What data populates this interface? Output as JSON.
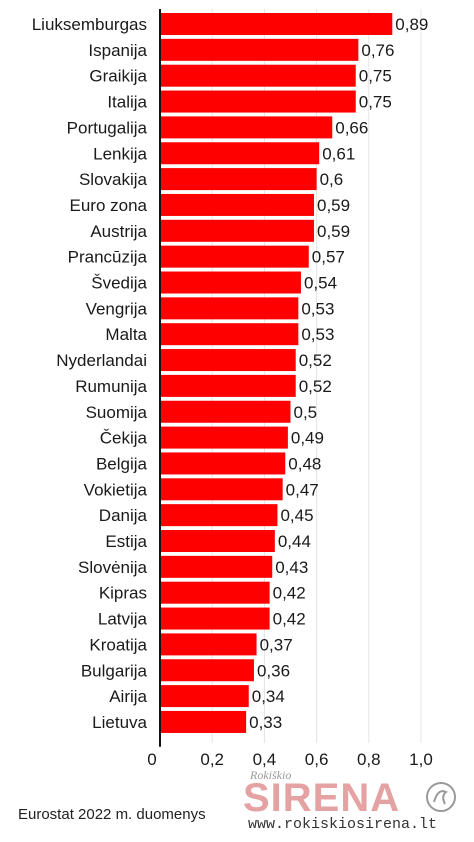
{
  "chart_data": {
    "type": "bar",
    "orientation": "horizontal",
    "categories": [
      "Liuksemburgas",
      "Ispanija",
      "Graikija",
      "Italija",
      "Portugalija",
      "Lenkija",
      "Slovakija",
      "Euro zona",
      "Austrija",
      "Prancūzija",
      "Švedija",
      "Vengrija",
      "Malta",
      "Nyderlandai",
      "Rumunija",
      "Suomija",
      "Čekija",
      "Belgija",
      "Vokietija",
      "Danija",
      "Estija",
      "Slovėnija",
      "Kipras",
      "Latvija",
      "Kroatija",
      "Bulgarija",
      "Airija",
      "Lietuva"
    ],
    "values": [
      0.89,
      0.76,
      0.75,
      0.75,
      0.66,
      0.61,
      0.6,
      0.59,
      0.59,
      0.57,
      0.54,
      0.53,
      0.53,
      0.52,
      0.52,
      0.5,
      0.49,
      0.48,
      0.47,
      0.45,
      0.44,
      0.43,
      0.42,
      0.42,
      0.37,
      0.36,
      0.34,
      0.33
    ],
    "value_labels": [
      "0,89",
      "0,76",
      "0,75",
      "0,75",
      "0,66",
      "0,61",
      "0,6",
      "0,59",
      "0,59",
      "0,57",
      "0,54",
      "0,53",
      "0,53",
      "0,52",
      "0,52",
      "0,5",
      "0,49",
      "0,48",
      "0,47",
      "0,45",
      "0,44",
      "0,43",
      "0,42",
      "0,42",
      "0,37",
      "0,36",
      "0,34",
      "0,33"
    ],
    "xlim": [
      0,
      1.0
    ],
    "x_ticks": [
      0,
      0.2,
      0.4,
      0.6,
      0.8,
      1.0
    ],
    "x_tick_labels": [
      "0",
      "0,2",
      "0,4",
      "0,6",
      "0,8",
      "1,0"
    ],
    "title": "",
    "xlabel": "",
    "ylabel": "",
    "grid": true,
    "bar_color": "#ff0000",
    "grid_color": "#e4e4e4"
  },
  "footer": {
    "source": "Eurostat 2022 m. duomenys"
  },
  "watermark": {
    "small": "Rokiškio",
    "brand": "SIRENA",
    "url": "www.rokiskiosirena.lt"
  }
}
